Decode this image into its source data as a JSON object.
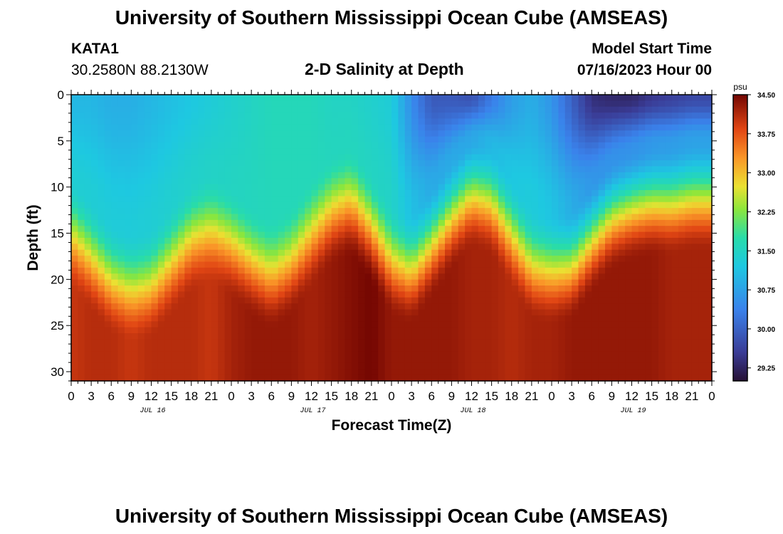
{
  "header": {
    "title": "University of Southern Mississippi Ocean Cube (AMSEAS)",
    "station_id": "KATA1",
    "station_coords": "30.2580N  88.2130W",
    "subtitle": "2-D Salinity at Depth",
    "model_start_label": "Model Start Time",
    "model_start_value": "07/16/2023 Hour 00"
  },
  "footer": {
    "title": "University of Southern Mississippi Ocean Cube (AMSEAS)"
  },
  "chart_data": {
    "type": "heatmap",
    "title": "2-D Salinity at Depth",
    "xlabel": "Forecast Time(Z)",
    "ylabel": "Depth (ft)",
    "xlim": [
      0,
      96
    ],
    "ylim": [
      0,
      31
    ],
    "y_inverted": true,
    "x_ticks": [
      0,
      3,
      6,
      9,
      12,
      15,
      18,
      21,
      24,
      27,
      30,
      33,
      36,
      39,
      42,
      45,
      48,
      51,
      54,
      57,
      60,
      63,
      66,
      69,
      72,
      75,
      78,
      81,
      84,
      87,
      90,
      93,
      96
    ],
    "x_tick_labels": [
      "0",
      "3",
      "6",
      "9",
      "12",
      "15",
      "18",
      "21",
      "0",
      "3",
      "6",
      "9",
      "12",
      "15",
      "18",
      "21",
      "0",
      "3",
      "6",
      "9",
      "12",
      "15",
      "18",
      "21",
      "0",
      "3",
      "6",
      "9",
      "12",
      "15",
      "18",
      "21",
      "0"
    ],
    "day_labels": [
      {
        "hour": 12,
        "text": "JUL 16"
      },
      {
        "hour": 36,
        "text": "JUL 17"
      },
      {
        "hour": 60,
        "text": "JUL 18"
      },
      {
        "hour": 84,
        "text": "JUL 19"
      }
    ],
    "y_ticks": [
      0,
      5,
      10,
      15,
      20,
      25,
      30
    ],
    "y_tick_labels": [
      "0",
      "5",
      "10",
      "15",
      "20",
      "25",
      "30"
    ],
    "colorbar": {
      "units": "psu",
      "min": 29.0,
      "max": 34.5,
      "ticks": [
        34.5,
        33.75,
        33.0,
        32.25,
        31.5,
        30.75,
        30.0,
        29.25
      ],
      "tick_labels": [
        "34.50",
        "33.75",
        "33.00",
        "32.25",
        "31.50",
        "30.75",
        "30.00",
        "29.25"
      ]
    },
    "halocline_hours": [
      0,
      3,
      6,
      9,
      12,
      15,
      18,
      21,
      24,
      27,
      30,
      33,
      36,
      39,
      42,
      45,
      48,
      51,
      54,
      57,
      60,
      63,
      66,
      69,
      72,
      75,
      78,
      81,
      84,
      87,
      90,
      93,
      96
    ],
    "halocline_depth_ft": [
      17,
      19.5,
      22,
      23,
      22.5,
      20,
      17.5,
      16.5,
      18,
      20,
      21.5,
      20,
      17,
      14.5,
      13.5,
      16.5,
      20,
      21,
      18,
      15,
      12.5,
      13.5,
      17,
      20.5,
      21,
      20.5,
      17.5,
      15,
      14,
      13.5,
      13.5,
      13,
      13
    ],
    "surface_salinity_psu": [
      31.0,
      31.0,
      30.9,
      30.9,
      31.0,
      31.1,
      31.2,
      31.3,
      31.4,
      31.5,
      31.6,
      31.6,
      31.6,
      31.5,
      31.5,
      31.4,
      31.3,
      30.5,
      29.9,
      29.9,
      29.8,
      30.3,
      30.7,
      30.9,
      30.6,
      30.0,
      29.4,
      29.3,
      29.3,
      29.5,
      29.6,
      29.7,
      29.7
    ],
    "bottom_salinity_psu": [
      34.0,
      34.1,
      34.1,
      34.0,
      34.1,
      34.1,
      34.1,
      34.0,
      34.2,
      34.3,
      34.3,
      34.3,
      34.2,
      34.3,
      34.4,
      34.5,
      34.3,
      34.3,
      34.3,
      34.3,
      34.2,
      34.2,
      34.1,
      34.2,
      34.2,
      34.3,
      34.3,
      34.3,
      34.3,
      34.3,
      34.2,
      34.2,
      34.2
    ]
  }
}
